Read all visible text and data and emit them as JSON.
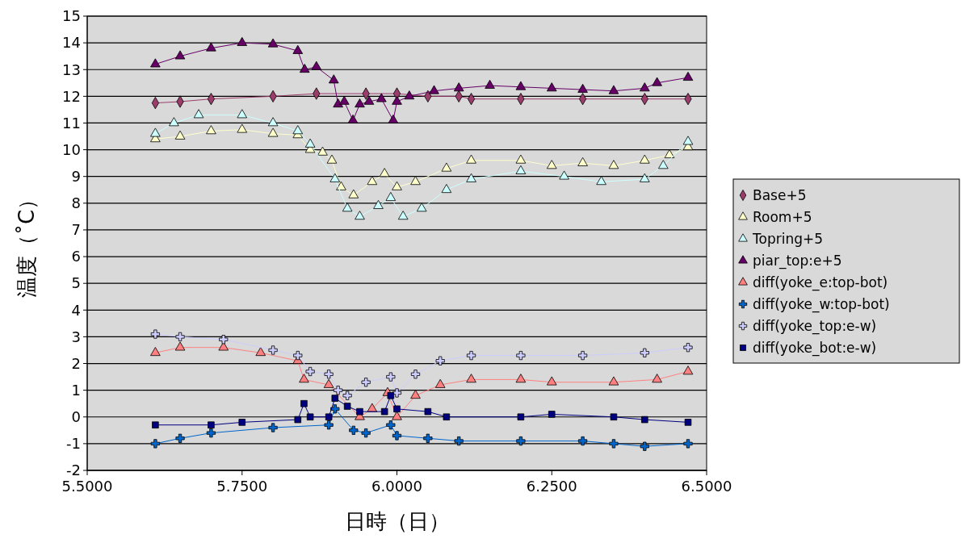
{
  "chart_data": {
    "type": "line",
    "xlabel": "日時（日）",
    "ylabel": "温度（˚C）",
    "xlim": [
      5.5,
      6.5
    ],
    "ylim": [
      -2,
      15
    ],
    "xticks": [
      {
        "value": 5.5,
        "label": "5.5000"
      },
      {
        "value": 5.75,
        "label": "5.7500"
      },
      {
        "value": 6,
        "label": "6.0000"
      },
      {
        "value": 6.25,
        "label": "6.2500"
      },
      {
        "value": 6.5,
        "label": "6.5000"
      }
    ],
    "yticks": [
      -2,
      -1,
      0,
      1,
      2,
      3,
      4,
      5,
      6,
      7,
      8,
      9,
      10,
      11,
      12,
      13,
      14,
      15
    ],
    "grid": "y",
    "legend": "right",
    "series": [
      {
        "name": "Base+5",
        "color": "#9b3d6b",
        "marker": "diamond",
        "x": [
          5.61,
          5.65,
          5.7,
          5.8,
          5.87,
          5.95,
          6.0,
          6.05,
          6.1,
          6.12,
          6.2,
          6.3,
          6.4,
          6.47
        ],
        "values": [
          11.75,
          11.8,
          11.9,
          12.0,
          12.1,
          12.1,
          12.1,
          12.0,
          12.0,
          11.9,
          11.9,
          11.9,
          11.9,
          11.9
        ]
      },
      {
        "name": "Room+5",
        "color": "#ffffcc",
        "marker": "triangle",
        "x": [
          5.61,
          5.65,
          5.7,
          5.75,
          5.8,
          5.84,
          5.86,
          5.88,
          5.895,
          5.91,
          5.93,
          5.96,
          5.98,
          6.0,
          6.03,
          6.08,
          6.12,
          6.2,
          6.25,
          6.3,
          6.35,
          6.4,
          6.44,
          6.47
        ],
        "values": [
          10.4,
          10.5,
          10.7,
          10.75,
          10.6,
          10.55,
          10.0,
          9.9,
          9.6,
          8.6,
          8.3,
          8.8,
          9.1,
          8.6,
          8.8,
          9.3,
          9.6,
          9.6,
          9.4,
          9.5,
          9.4,
          9.6,
          9.8,
          10.1
        ]
      },
      {
        "name": "Topring+5",
        "color": "#ccffff",
        "marker": "triangle",
        "x": [
          5.61,
          5.64,
          5.68,
          5.75,
          5.8,
          5.84,
          5.86,
          5.9,
          5.92,
          5.94,
          5.97,
          5.99,
          6.01,
          6.04,
          6.08,
          6.12,
          6.2,
          6.27,
          6.33,
          6.4,
          6.43,
          6.47
        ],
        "values": [
          10.6,
          11.0,
          11.3,
          11.3,
          11.0,
          10.7,
          10.2,
          8.9,
          7.8,
          7.5,
          7.9,
          8.2,
          7.5,
          7.8,
          8.5,
          8.9,
          9.2,
          9.0,
          8.8,
          8.9,
          9.4,
          10.3
        ]
      },
      {
        "name": "piar_top:e+5",
        "color": "#660066",
        "marker": "triangle",
        "x": [
          5.61,
          5.65,
          5.7,
          5.75,
          5.8,
          5.84,
          5.851,
          5.87,
          5.898,
          5.905,
          5.915,
          5.929,
          5.94,
          5.955,
          5.975,
          5.994,
          6.0,
          6.02,
          6.06,
          6.1,
          6.15,
          6.2,
          6.25,
          6.3,
          6.35,
          6.4,
          6.42,
          6.47
        ],
        "values": [
          13.2,
          13.5,
          13.8,
          14.0,
          13.95,
          13.7,
          13.0,
          13.1,
          12.6,
          11.7,
          11.8,
          11.1,
          11.7,
          11.8,
          11.9,
          11.1,
          11.8,
          12.0,
          12.2,
          12.3,
          12.4,
          12.35,
          12.3,
          12.25,
          12.2,
          12.3,
          12.5,
          12.7
        ]
      },
      {
        "name": "diff(yoke_e:top-bot)",
        "color": "#ff8080",
        "marker": "triangle",
        "x": [
          5.61,
          5.65,
          5.72,
          5.78,
          5.84,
          5.85,
          5.89,
          5.94,
          5.96,
          5.985,
          6.0,
          6.03,
          6.07,
          6.12,
          6.2,
          6.25,
          6.35,
          6.42,
          6.47
        ],
        "values": [
          2.4,
          2.6,
          2.6,
          2.4,
          2.1,
          1.4,
          1.2,
          0.0,
          0.3,
          0.9,
          0.0,
          0.8,
          1.2,
          1.4,
          1.4,
          1.3,
          1.3,
          1.4,
          1.7
        ]
      },
      {
        "name": "diff(yoke_w:top-bot)",
        "color": "#0066cc",
        "marker": "cross",
        "x": [
          5.61,
          5.65,
          5.7,
          5.8,
          5.89,
          5.9,
          5.93,
          5.95,
          5.99,
          6.0,
          6.05,
          6.1,
          6.2,
          6.3,
          6.35,
          6.4,
          6.47
        ],
        "values": [
          -1.0,
          -0.8,
          -0.6,
          -0.4,
          -0.3,
          0.3,
          -0.5,
          -0.6,
          -0.3,
          -0.7,
          -0.8,
          -0.9,
          -0.9,
          -0.9,
          -1.0,
          -1.1,
          -1.0
        ]
      },
      {
        "name": "diff(yoke_top:e-w)",
        "color": "#ccccff",
        "marker": "cross",
        "x": [
          5.61,
          5.65,
          5.72,
          5.8,
          5.84,
          5.86,
          5.89,
          5.905,
          5.92,
          5.95,
          5.99,
          6.0,
          6.03,
          6.07,
          6.12,
          6.2,
          6.3,
          6.4,
          6.47
        ],
        "values": [
          3.1,
          3.0,
          2.9,
          2.5,
          2.3,
          1.7,
          1.6,
          1.0,
          0.8,
          1.3,
          1.5,
          0.9,
          1.6,
          2.1,
          2.3,
          2.3,
          2.3,
          2.4,
          2.6
        ]
      },
      {
        "name": "diff(yoke_bot:e-w)",
        "color": "#000080",
        "marker": "square",
        "x": [
          5.61,
          5.7,
          5.75,
          5.84,
          5.85,
          5.86,
          5.89,
          5.9,
          5.92,
          5.94,
          5.98,
          5.99,
          6.0,
          6.05,
          6.08,
          6.2,
          6.25,
          6.35,
          6.4,
          6.47
        ],
        "values": [
          -0.3,
          -0.3,
          -0.2,
          -0.1,
          0.5,
          0.0,
          0.0,
          0.7,
          0.4,
          0.2,
          0.2,
          0.8,
          0.3,
          0.2,
          0.0,
          0.0,
          0.1,
          0.0,
          -0.1,
          -0.2
        ]
      }
    ]
  }
}
